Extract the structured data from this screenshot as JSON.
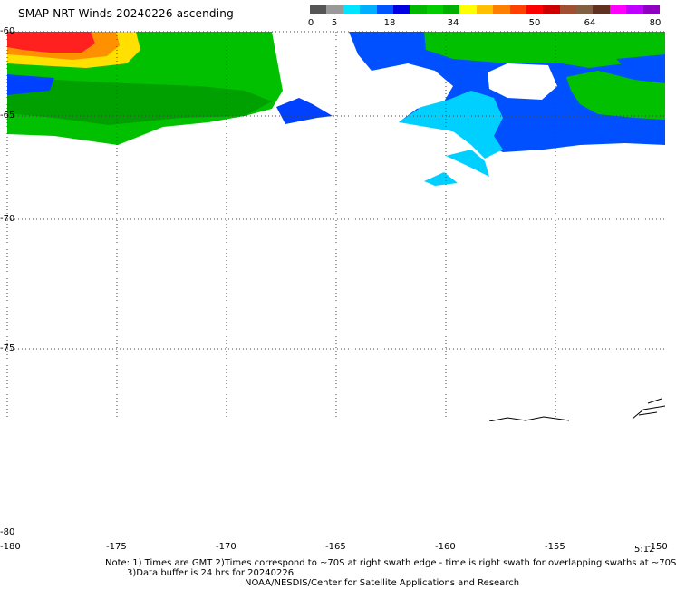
{
  "title": "SMAP NRT Winds 20240226 ascending",
  "colorbar": {
    "ticks": [
      "0",
      "5",
      "18",
      "34",
      "50",
      "64",
      "80"
    ],
    "segments": [
      "#555555",
      "#999999",
      "#00e5ff",
      "#00b0ff",
      "#0055ff",
      "#0000e0",
      "#00b800",
      "#00cc00",
      "#00b000",
      "#ffff00",
      "#ffc000",
      "#ff8000",
      "#ff4000",
      "#ff0000",
      "#cc0000",
      "#a05030",
      "#806040",
      "#603020",
      "#ff00ff",
      "#c000ff",
      "#9000c0"
    ]
  },
  "map": {
    "lon_labels": [
      "-180",
      "-175",
      "-170",
      "-165",
      "-160",
      "-155",
      "-150"
    ],
    "lat_labels": [
      "-60",
      "-65",
      "-70",
      "-75",
      "-80"
    ],
    "wind_regions": [
      {
        "name": "green-high-winds-west",
        "color": "#00c000"
      },
      {
        "name": "dark-green-core",
        "color": "#00a000"
      },
      {
        "name": "red-peak",
        "color": "#ff2020"
      },
      {
        "name": "orange-band",
        "color": "#ff9000"
      },
      {
        "name": "yellow-band",
        "color": "#ffe000"
      },
      {
        "name": "blue-low-winds",
        "color": "#0050ff"
      },
      {
        "name": "cyan-calm",
        "color": "#00d0ff"
      },
      {
        "name": "green-east",
        "color": "#00c000"
      }
    ]
  },
  "timestamp": "5:12",
  "notes": {
    "line1": "Note: 1) Times are GMT 2)Times correspond to ~70S at right swath edge - time is right swath for overlapping swaths at ~70S",
    "line2": "3)Data buffer is 24 hrs for 20240226",
    "line3": "NOAA/NESDIS/Center for Satellite Applications and Research"
  }
}
